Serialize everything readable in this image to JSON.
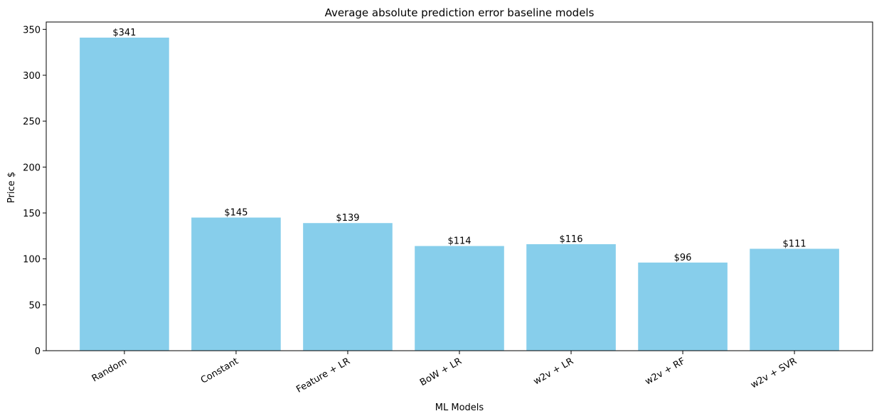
{
  "chart_data": {
    "type": "bar",
    "title": "Average absolute prediction error baseline models",
    "xlabel": "ML Models",
    "ylabel": "Price $",
    "categories": [
      "Random",
      "Constant",
      "Feature + LR",
      "BoW + LR",
      "w2v + LR",
      "w2v + RF",
      "w2v + SVR"
    ],
    "values": [
      341,
      145,
      139,
      114,
      116,
      96,
      111
    ],
    "bar_labels": [
      "$341",
      "$145",
      "$139",
      "$114",
      "$116",
      "$96",
      "$111"
    ],
    "ylim": [
      0,
      358
    ],
    "yticks": [
      0,
      50,
      100,
      150,
      200,
      250,
      300,
      350
    ],
    "grid": false,
    "legend": "none",
    "bar_color": "#87CEEB"
  }
}
